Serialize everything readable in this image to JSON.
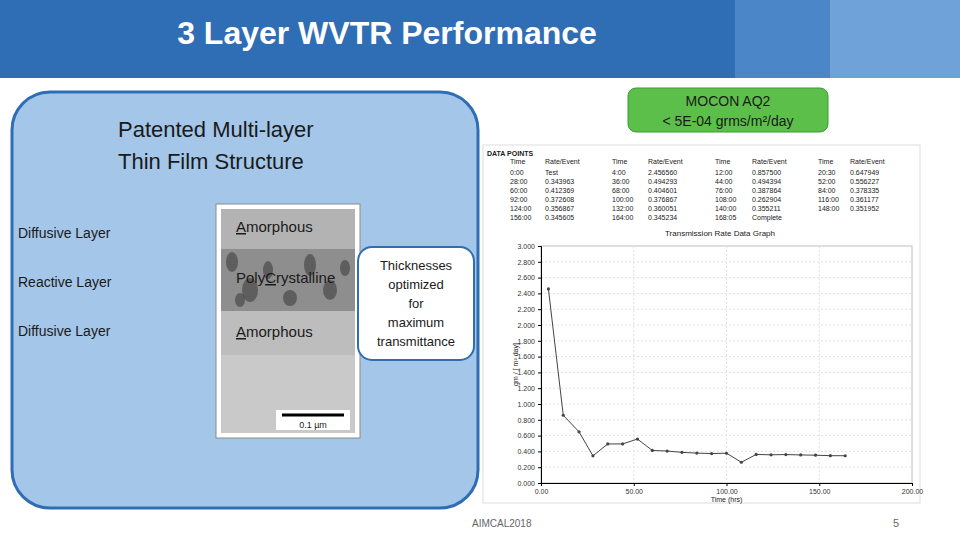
{
  "slide": {
    "title": "3 Layer WVTR Performance",
    "badge": [
      "MOCON AQ2",
      "< 5E-04 grms/m²/day"
    ],
    "structure_title": [
      "Patented Multi-layer",
      "Thin Film Structure"
    ],
    "layers": [
      {
        "role": "Diffusive Layer",
        "phase": "Amorphous"
      },
      {
        "role": "Reactive Layer",
        "phase": "PolyCrystalline"
      },
      {
        "role": "Diffusive Layer",
        "phase": "Amorphous"
      }
    ],
    "scale_bar": "0.1 µm",
    "callout": [
      "Thicknesses",
      "optimized",
      "for",
      "maximum",
      "transmittance"
    ],
    "footer": "AIMCAL2018",
    "page": "5"
  },
  "data_points": {
    "title": "DATA POINTS",
    "header": [
      "Time",
      "Rate/Event"
    ],
    "rows": [
      [
        [
          "0:00",
          "Test"
        ],
        [
          "4:00",
          "2.456560"
        ],
        [
          "12:00",
          "0.857500"
        ],
        [
          "20:30",
          "0.647949"
        ]
      ],
      [
        [
          "28:00",
          "0.343963"
        ],
        [
          "36:00",
          "0.494293"
        ],
        [
          "44:00",
          "0.494394"
        ],
        [
          "52:00",
          "0.556227"
        ]
      ],
      [
        [
          "60:00",
          "0.412369"
        ],
        [
          "68:00",
          "0.404601"
        ],
        [
          "76:00",
          "0.387864"
        ],
        [
          "84:00",
          "0.378335"
        ]
      ],
      [
        [
          "92:00",
          "0.372608"
        ],
        [
          "100:00",
          "0.376867"
        ],
        [
          "108:00",
          "0.262904"
        ],
        [
          "116:00",
          "0.361177"
        ]
      ],
      [
        [
          "124:00",
          "0.356867"
        ],
        [
          "132:00",
          "0.360051"
        ],
        [
          "140:00",
          "0.355211"
        ],
        [
          "148:00",
          "0.351952"
        ]
      ],
      [
        [
          "156:00",
          "0.345605"
        ],
        [
          "164:00",
          "0.345234"
        ],
        [
          "168:05",
          "Complete"
        ]
      ]
    ]
  },
  "chart_data": {
    "type": "line",
    "title": "Transmission Rate Data Graph",
    "x_label": "Time (hrs)",
    "y_label": "gm / [ m² day]",
    "x": [
      4,
      12,
      20.5,
      28,
      36,
      44,
      52,
      60,
      68,
      76,
      84,
      92,
      100,
      108,
      116,
      124,
      132,
      140,
      148,
      156,
      164
    ],
    "series": [
      {
        "color": "#444444",
        "marker": "circle",
        "line_style": "solid",
        "values": [
          2.45656,
          0.8575,
          0.647949,
          0.343963,
          0.494293,
          0.494394,
          0.556227,
          0.412369,
          0.404601,
          0.387864,
          0.378335,
          0.372608,
          0.376867,
          0.262904,
          0.361177,
          0.356867,
          0.360051,
          0.355211,
          0.351952,
          0.345605,
          0.345234
        ]
      }
    ],
    "xlim": [
      0,
      200
    ],
    "xticks": [
      {
        "value": 0,
        "label": "0.00"
      },
      {
        "value": 50,
        "label": "50.00"
      },
      {
        "value": 100,
        "label": "100.00"
      },
      {
        "value": 150,
        "label": "150.00"
      },
      {
        "value": 200,
        "label": "200.00"
      }
    ],
    "ylim": [
      0,
      3
    ],
    "yticks": [
      {
        "value": 0,
        "label": "0.000"
      },
      {
        "value": 0.2,
        "label": "0.200"
      },
      {
        "value": 0.4,
        "label": "0.400"
      },
      {
        "value": 0.6,
        "label": "0.600"
      },
      {
        "value": 0.8,
        "label": "0.800"
      },
      {
        "value": 1,
        "label": "1.000"
      },
      {
        "value": 1.2,
        "label": "1.200"
      },
      {
        "value": 1.4,
        "label": "1.400"
      },
      {
        "value": 1.6,
        "label": "1.600"
      },
      {
        "value": 1.8,
        "label": "1.800"
      },
      {
        "value": 2,
        "label": "2.000"
      },
      {
        "value": 2.2,
        "label": "2.200"
      },
      {
        "value": 2.4,
        "label": "2.400"
      },
      {
        "value": 2.6,
        "label": "2.600"
      },
      {
        "value": 2.8,
        "label": "2.800"
      },
      {
        "value": 3,
        "label": "3.000"
      }
    ],
    "grid": true
  }
}
